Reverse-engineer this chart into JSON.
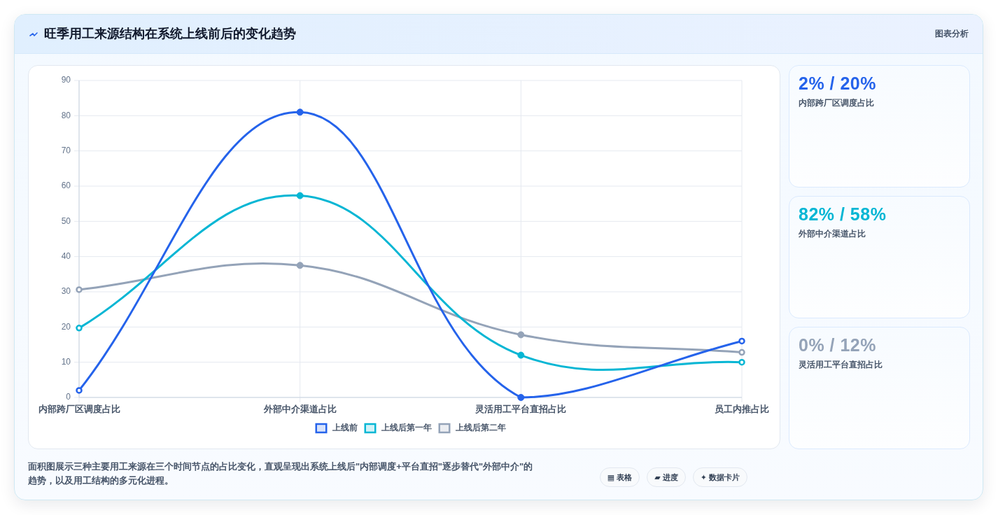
{
  "chart_data": [
    {
      "type": "line",
      "title": "旺季用工来源结构在系统上线前后的变化趋势",
      "categories": [
        "内部跨厂区调度占比",
        "外部中介渠道占比",
        "灵活用工平台直招占比",
        "员工内推占比"
      ],
      "series": [
        {
          "name": "上线前",
          "color": "#2563eb",
          "values": [
            2,
            81,
            0,
            16
          ]
        },
        {
          "name": "上线后第一年",
          "color": "#06b6d4",
          "values": [
            19.7,
            57.3,
            12,
            10
          ]
        },
        {
          "name": "上线后第二年",
          "color": "#94a3b8",
          "values": [
            30.6,
            37.5,
            17.8,
            12.8
          ]
        }
      ],
      "ylim": [
        0,
        90
      ],
      "yticks": [
        0,
        10,
        20,
        30,
        40,
        50,
        60,
        70,
        80,
        90
      ],
      "grid": true,
      "legend": "bottom",
      "marker": "circle",
      "line_style": "solid",
      "annotations": [
        "图表分析",
        "面积图展示三种主要用工来源在三个时间节点的占比变化，直观呈现出系统上线后\"内部调度+平台直招\"逐步替代\"外部中介\"的趋势，以及用工结构的多元化进程。",
        "▦ 表格",
        "▰ 进度",
        "✦ 数据卡片"
      ]
    },
    {
      "type": "other",
      "title": "2% / 20%",
      "subtitle": "内部跨厂区调度占比",
      "color": "#2563eb"
    },
    {
      "type": "other",
      "title": "82% / 58%",
      "subtitle": "外部中介渠道占比",
      "color": "#06b6d4"
    },
    {
      "type": "other",
      "title": "0% / 12%",
      "subtitle": "灵活用工平台直招占比",
      "color": "#94a3b8"
    }
  ]
}
